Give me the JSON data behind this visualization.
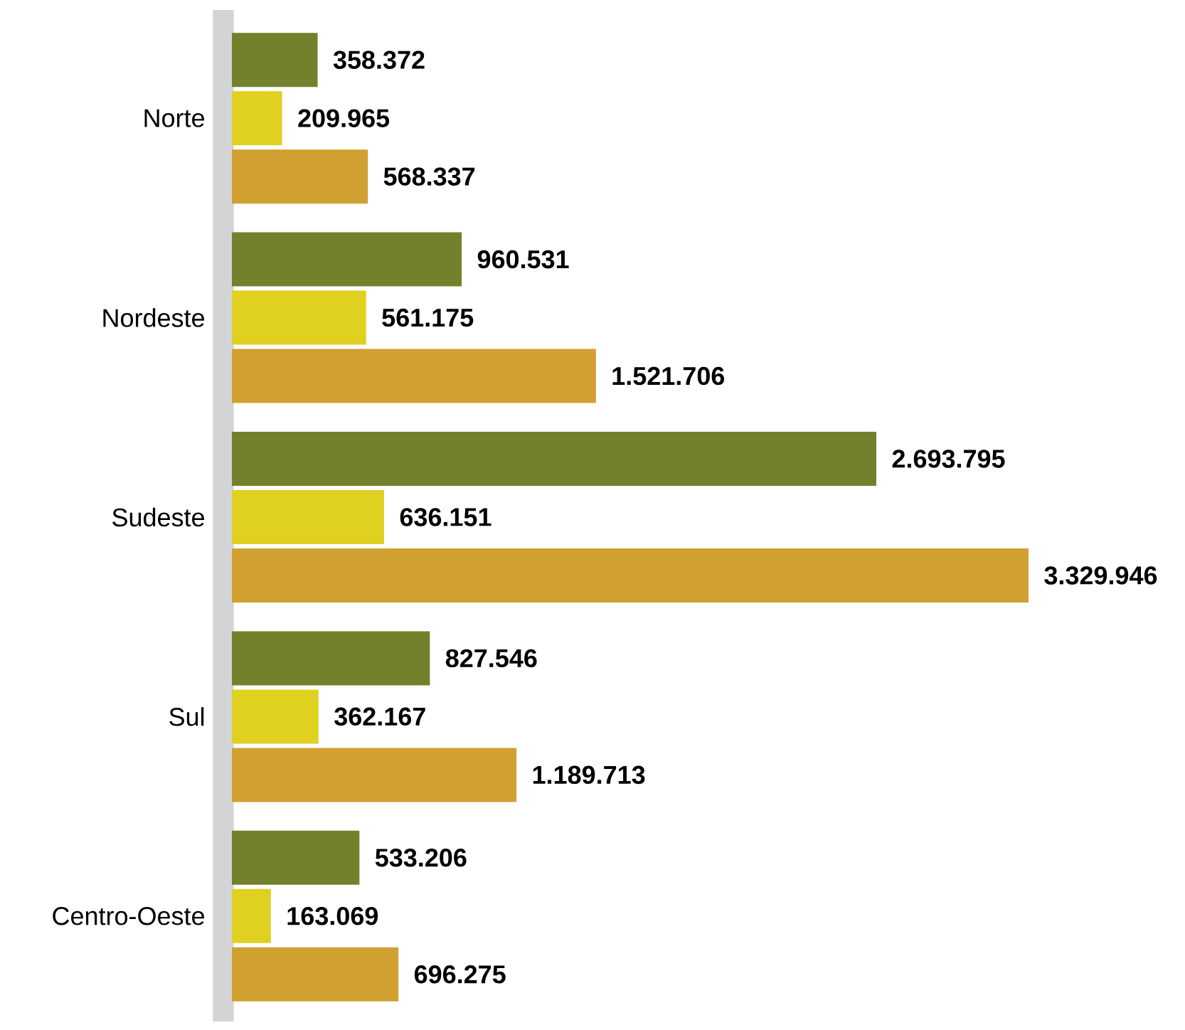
{
  "chart_data": {
    "type": "bar",
    "orientation": "horizontal",
    "categories": [
      "Norte",
      "Nordeste",
      "Sudeste",
      "Sul",
      "Centro-Oeste"
    ],
    "series": [
      {
        "color": "#73812d",
        "values": [
          358372,
          960531,
          2693795,
          827546,
          533206
        ],
        "value_labels": [
          "358.372",
          "960.531",
          "2.693.795",
          "827.546",
          "533.206"
        ]
      },
      {
        "color": "#e0d020",
        "values": [
          209965,
          561175,
          636151,
          362167,
          163069
        ],
        "value_labels": [
          "209.965",
          "561.175",
          "636.151",
          "362.167",
          "163.069"
        ]
      },
      {
        "color": "#d0a030",
        "values": [
          568337,
          1521706,
          3329946,
          1189713,
          696275
        ],
        "value_labels": [
          "568.337",
          "1.521.706",
          "3.329.946",
          "1.189.713",
          "696.275"
        ]
      }
    ]
  }
}
